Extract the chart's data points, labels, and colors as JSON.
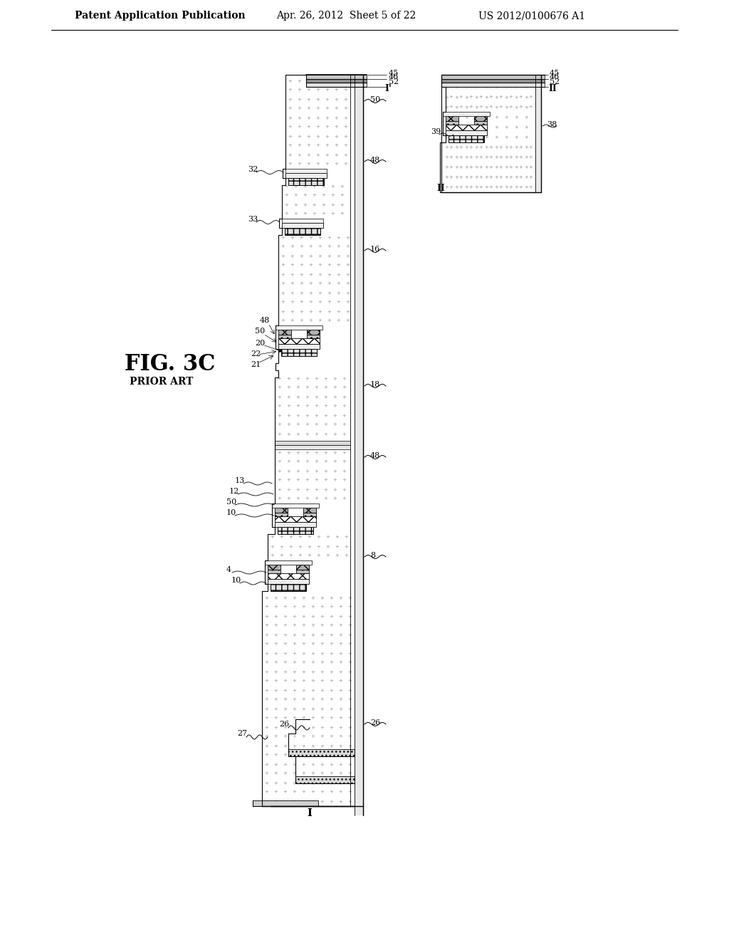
{
  "header_left": "Patent Application Publication",
  "header_mid": "Apr. 26, 2012  Sheet 5 of 22",
  "header_right": "US 2012/0100676 A1",
  "fig_label": "FIG. 3C",
  "fig_sublabel": "PRIOR ART",
  "bg": "#ffffff"
}
